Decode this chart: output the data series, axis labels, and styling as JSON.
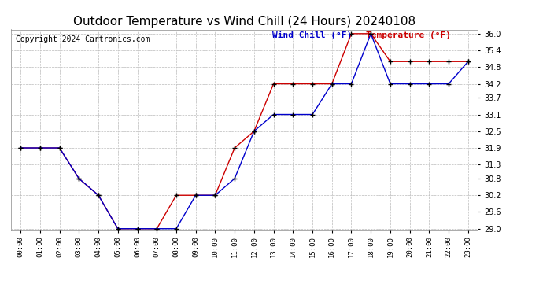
{
  "title": "Outdoor Temperature vs Wind Chill (24 Hours) 20240108",
  "copyright": "Copyright 2024 Cartronics.com",
  "legend_wind_chill": "Wind Chill (°F)",
  "legend_temp": "Temperature (°F)",
  "x_labels": [
    "00:00",
    "01:00",
    "02:00",
    "03:00",
    "04:00",
    "05:00",
    "06:00",
    "07:00",
    "08:00",
    "09:00",
    "10:00",
    "11:00",
    "12:00",
    "13:00",
    "14:00",
    "15:00",
    "16:00",
    "17:00",
    "18:00",
    "19:00",
    "20:00",
    "21:00",
    "22:00",
    "23:00"
  ],
  "temperature": [
    31.9,
    31.9,
    31.9,
    30.8,
    30.2,
    29.0,
    29.0,
    29.0,
    30.2,
    30.2,
    30.2,
    31.9,
    32.5,
    34.2,
    34.2,
    34.2,
    34.2,
    36.0,
    36.0,
    35.0,
    35.0,
    35.0,
    35.0,
    35.0
  ],
  "wind_chill": [
    31.9,
    31.9,
    31.9,
    30.8,
    30.2,
    29.0,
    29.0,
    29.0,
    29.0,
    30.2,
    30.2,
    30.8,
    32.5,
    33.1,
    33.1,
    33.1,
    34.2,
    34.2,
    36.0,
    34.2,
    34.2,
    34.2,
    34.2,
    35.0
  ],
  "temp_color": "#cc0000",
  "wind_chill_color": "#0000cc",
  "ylim_min": 29.0,
  "ylim_max": 36.0,
  "yticks": [
    29.0,
    29.6,
    30.2,
    30.8,
    31.3,
    31.9,
    32.5,
    33.1,
    33.7,
    34.2,
    34.8,
    35.4,
    36.0
  ],
  "background_color": "#ffffff",
  "grid_color": "#bbbbbb",
  "title_fontsize": 11,
  "copyright_fontsize": 7,
  "legend_fontsize": 8
}
